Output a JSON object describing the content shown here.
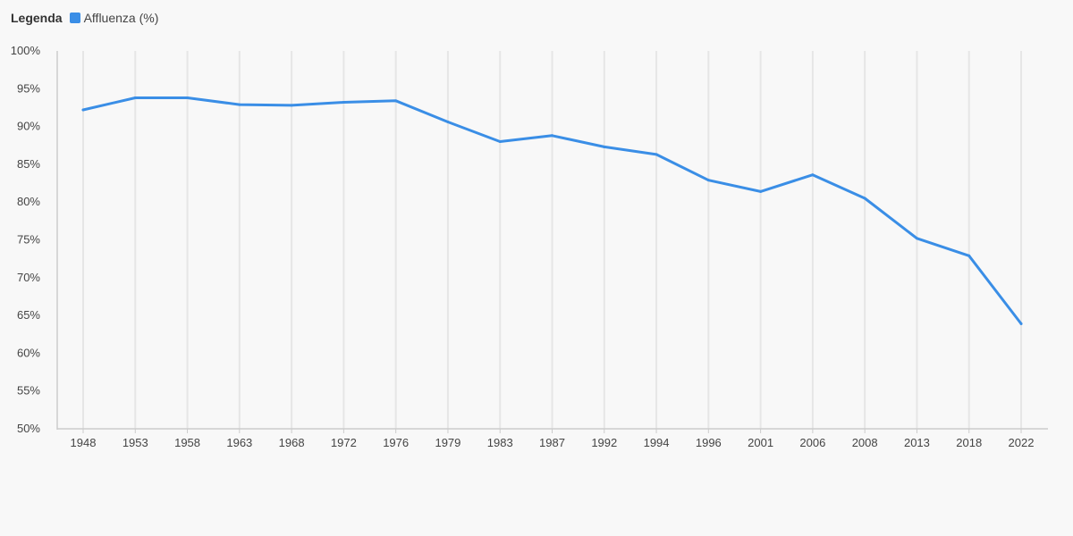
{
  "legend": {
    "title": "Legenda",
    "entries": [
      {
        "label": "Affluenza (%)",
        "color": "#3a8ee6"
      }
    ]
  },
  "chart_data": {
    "type": "line",
    "title": "",
    "xlabel": "",
    "ylabel": "",
    "ylim": [
      50,
      100
    ],
    "ytick_step": 5,
    "ytick_labels": [
      "50%",
      "55%",
      "60%",
      "65%",
      "70%",
      "75%",
      "80%",
      "85%",
      "90%",
      "95%",
      "100%"
    ],
    "grid": "vertical",
    "legend_position": "top-left",
    "categories": [
      "1948",
      "1953",
      "1958",
      "1963",
      "1968",
      "1972",
      "1976",
      "1979",
      "1983",
      "1987",
      "1992",
      "1994",
      "1996",
      "2001",
      "2006",
      "2008",
      "2013",
      "2018",
      "2022"
    ],
    "series": [
      {
        "name": "Affluenza (%)",
        "color": "#3a8ee6",
        "values": [
          92.2,
          93.8,
          93.8,
          92.9,
          92.8,
          93.2,
          93.4,
          90.6,
          88.0,
          88.8,
          87.3,
          86.3,
          82.9,
          81.4,
          83.6,
          80.5,
          75.2,
          72.9,
          63.9
        ]
      }
    ]
  }
}
